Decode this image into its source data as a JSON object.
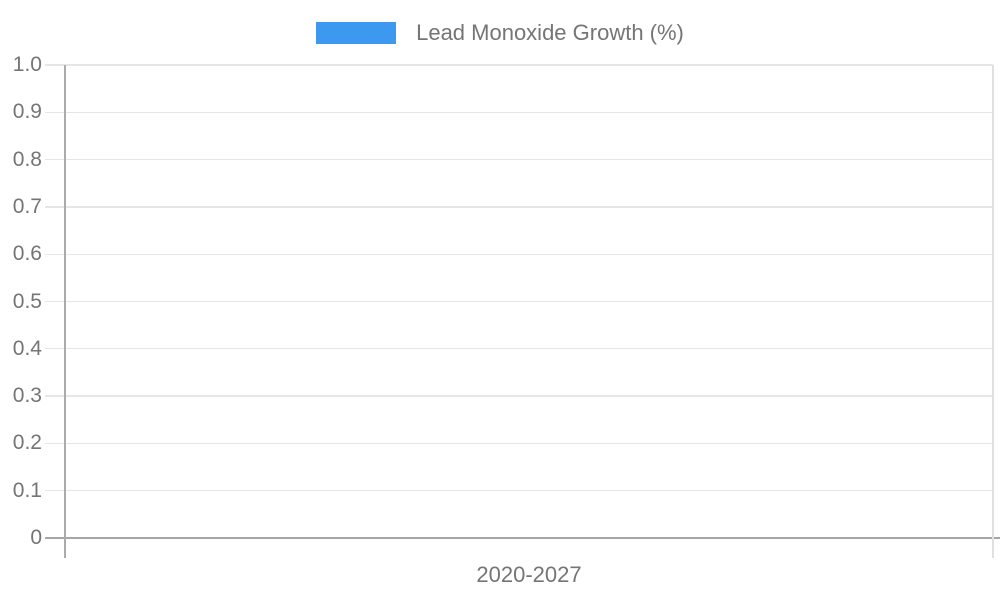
{
  "legend": {
    "label": "Lead Monoxide Growth (%)",
    "swatch_color": "#3D99F0"
  },
  "y_axis": {
    "tick_labels": [
      "1.0",
      "0.9",
      "0.8",
      "0.7",
      "0.6",
      "0.5",
      "0.4",
      "0.3",
      "0.2",
      "0.1",
      "0"
    ]
  },
  "x_axis": {
    "label": "2020-2027"
  },
  "colors": {
    "text": "#757575",
    "grid_line": "#E6E6E6",
    "axis_line": "#ABABAB",
    "baseline": "#A6A6A6",
    "plot_border": "#E0E0E0",
    "accent": "#3D99F0",
    "background": "#FFFFFF"
  },
  "chart_data": {
    "type": "bar",
    "title": "Lead Monoxide Growth (%)",
    "categories": [
      "2020-2027"
    ],
    "series": [
      {
        "name": "Lead Monoxide Growth (%)",
        "values": []
      }
    ],
    "xlabel": "2020-2027",
    "ylabel": "",
    "ylim": [
      0,
      1.0
    ],
    "ytick_step": 0.1,
    "yticks": [
      0,
      0.1,
      0.2,
      0.3,
      0.4,
      0.5,
      0.6,
      0.7,
      0.8,
      0.9,
      1.0
    ],
    "grid": true,
    "legend_position": "top",
    "plot_empty": true
  }
}
